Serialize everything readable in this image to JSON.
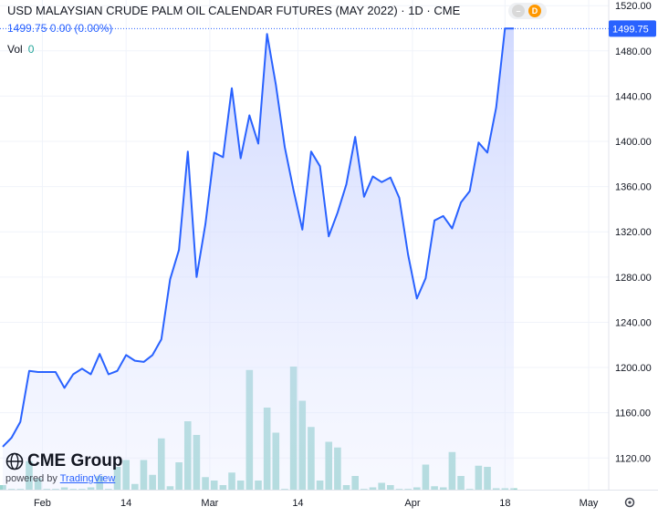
{
  "header": {
    "title": "USD MALAYSIAN CRUDE PALM OIL CALENDAR FUTURES (MAY 2022) · 1D · CME",
    "quote": "1499.75  0.00 (0.00%)",
    "vol_label": "Vol",
    "vol_value": "0",
    "status_dot": "D"
  },
  "logo": {
    "brand": "CME Group",
    "powered_by": "powered by",
    "tradingview": "TradingView"
  },
  "colors": {
    "line": "#2962ff",
    "area_top": "#c9d3ff",
    "volume": "#8ecfc9",
    "price_tag": "#2962ff"
  },
  "chart_data": {
    "type": "area",
    "x_tick_labels": [
      "Feb",
      "14",
      "Mar",
      "14",
      "Apr",
      "18",
      "May"
    ],
    "y_tick_labels": [
      "1120.00",
      "1160.00",
      "1200.00",
      "1240.00",
      "1280.00",
      "1320.00",
      "1360.00",
      "1400.00",
      "1440.00",
      "1480.00",
      "1520.00"
    ],
    "ylim": [
      1092,
      1525
    ],
    "last_price_label": "1499.75",
    "series": [
      {
        "type": "line",
        "values": [
          1130,
          1138,
          1152,
          1197,
          1196,
          1196,
          1196,
          1182,
          1194,
          1199,
          1194,
          1212,
          1194,
          1197,
          1211,
          1206,
          1205,
          1211,
          1225,
          1278,
          1304,
          1391,
          1280,
          1327,
          1390,
          1386,
          1447,
          1385,
          1423,
          1398,
          1495,
          1450,
          1395,
          1357,
          1322,
          1391,
          1378,
          1316,
          1337,
          1362,
          1404,
          1351,
          1369,
          1364,
          1368,
          1350,
          1300,
          1261,
          1279,
          1330,
          1334,
          1323,
          1346,
          1356,
          1399,
          1390,
          1430,
          1499.75,
          1499.75
        ]
      },
      {
        "type": "volume_bar",
        "values": [
          4,
          0,
          0,
          25,
          10,
          0,
          0,
          2,
          0,
          0,
          2,
          12,
          0,
          20,
          26,
          5,
          26,
          13,
          45,
          3,
          24,
          60,
          48,
          11,
          8,
          4,
          15,
          8,
          105,
          8,
          72,
          50,
          0,
          108,
          78,
          55,
          8,
          42,
          37,
          4,
          12,
          0,
          2,
          6,
          4,
          0,
          0,
          2,
          22,
          3,
          2,
          33,
          12,
          0,
          21,
          20,
          1,
          1,
          1
        ]
      }
    ]
  }
}
